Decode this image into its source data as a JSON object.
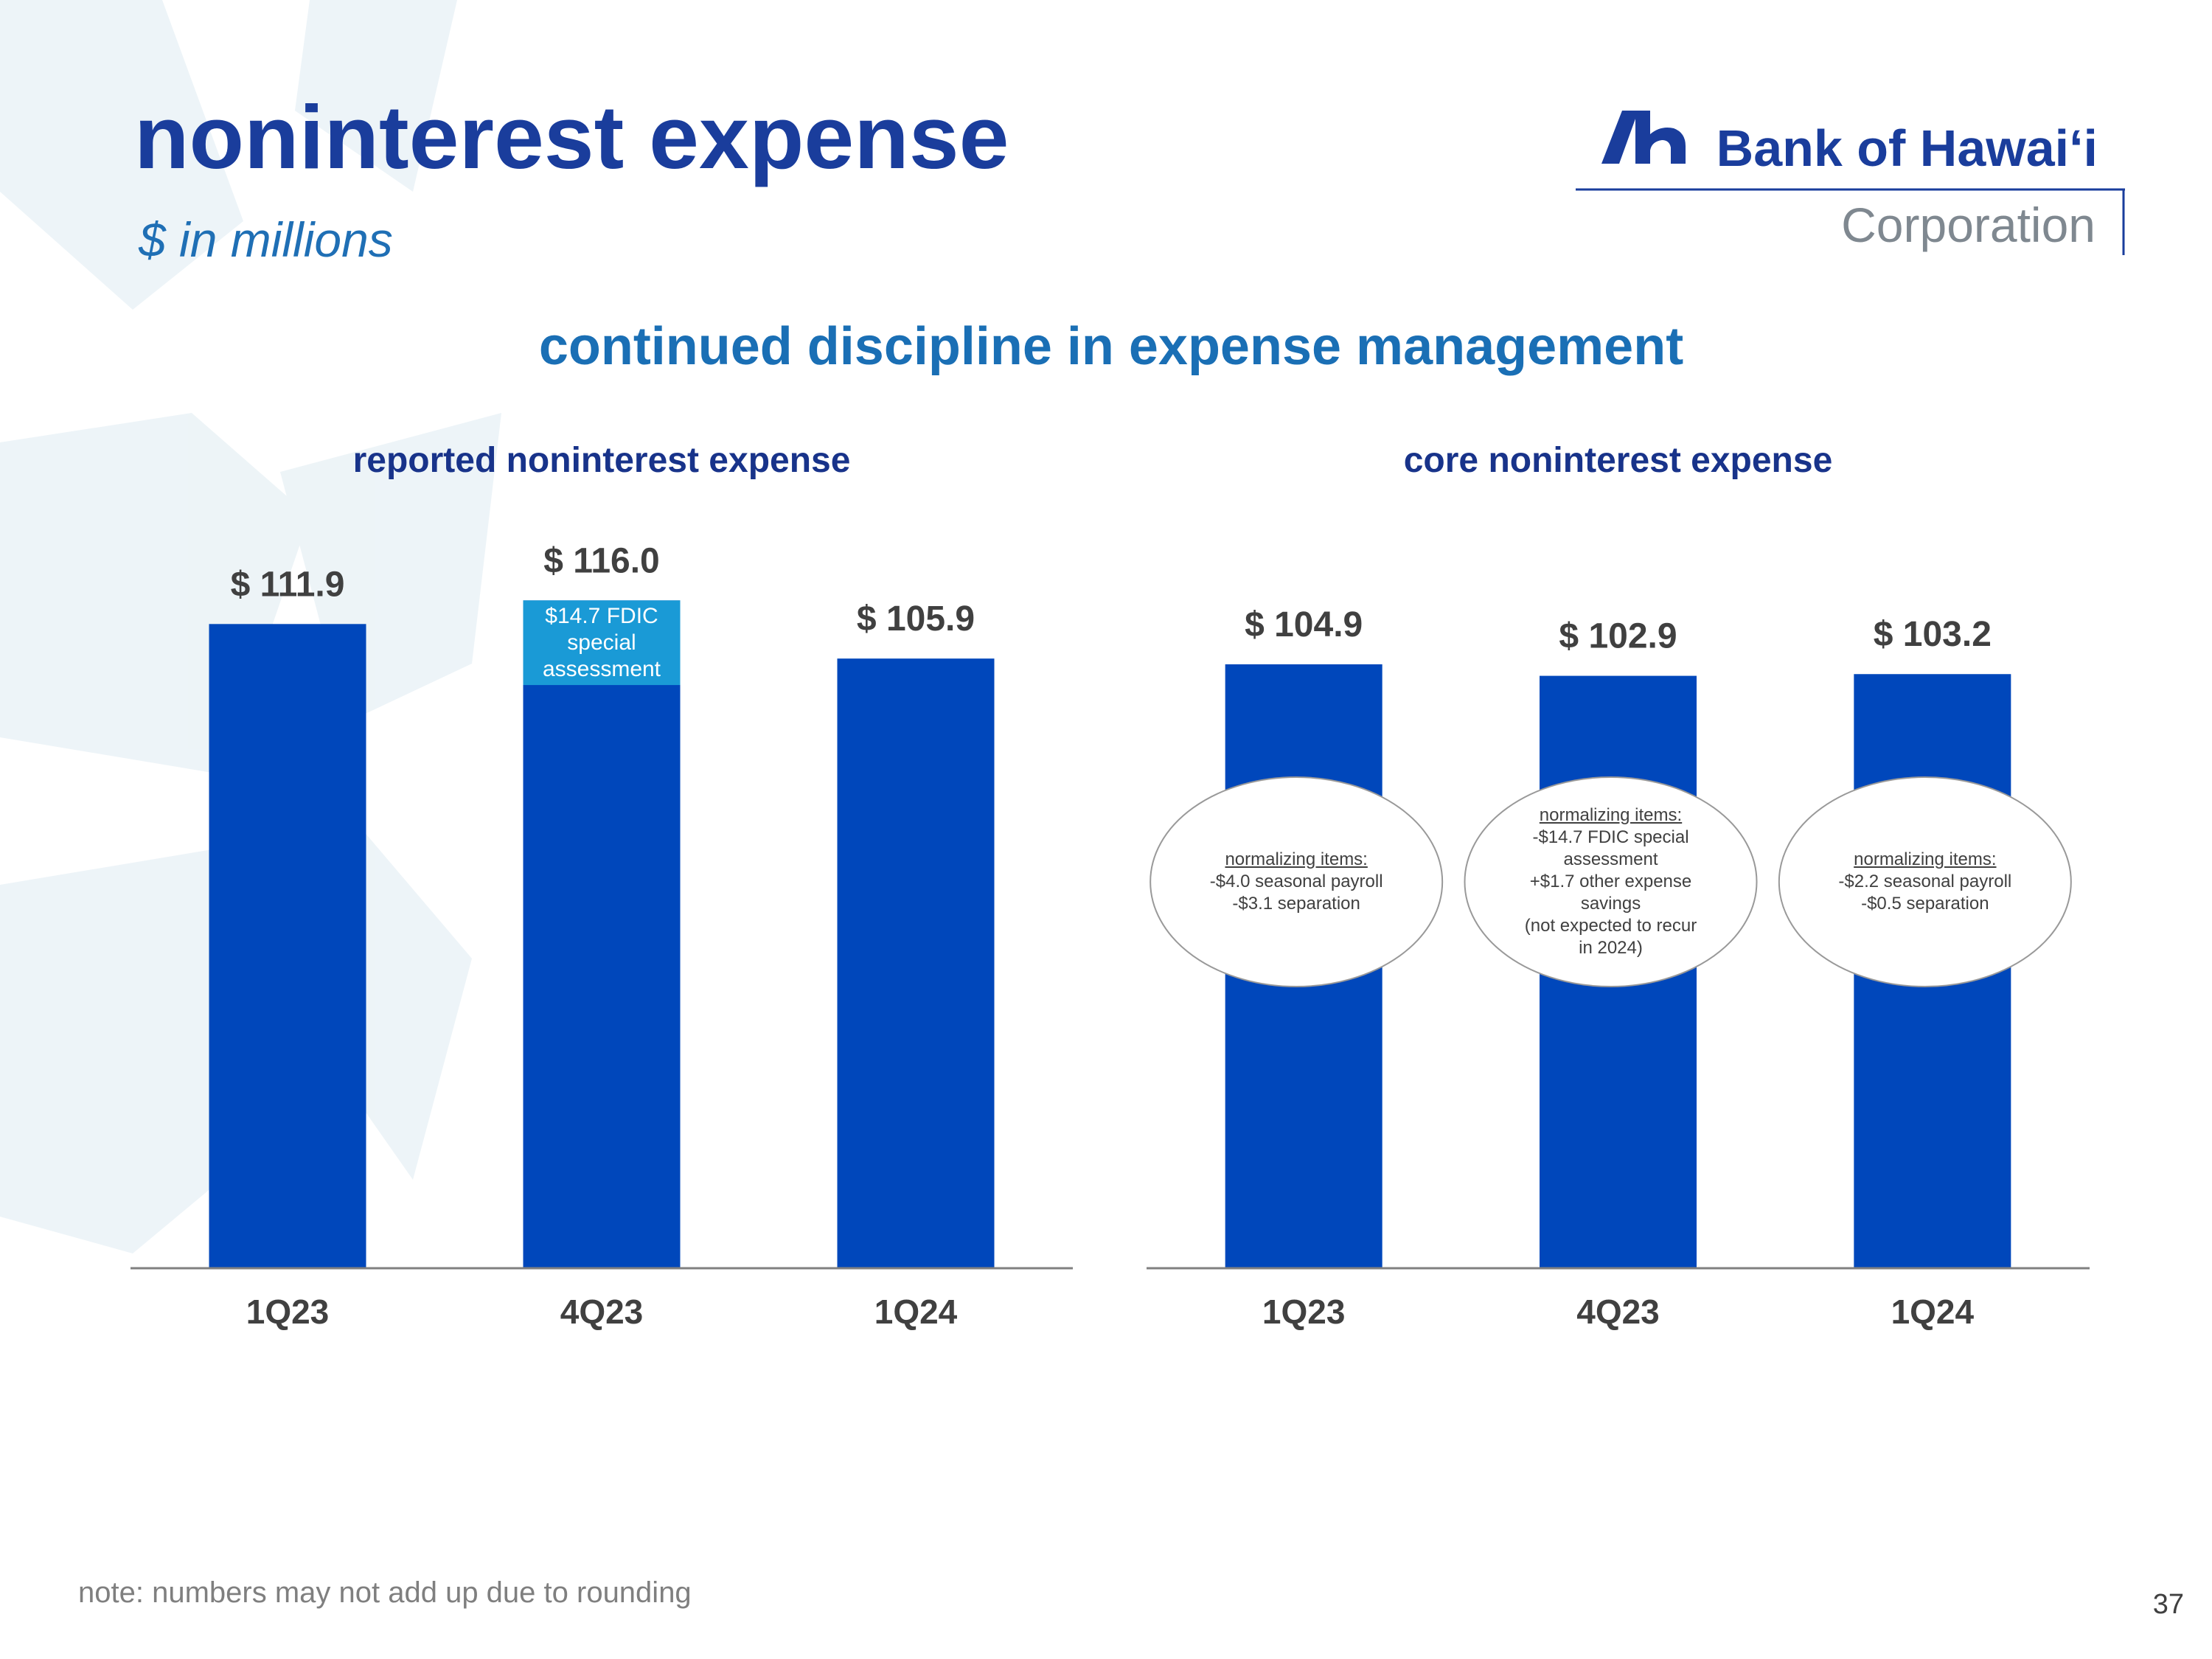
{
  "page": {
    "title": "noninterest expense",
    "subtitle": "$ in millions",
    "headline": "continued discipline in expense management",
    "logo_name": "Bank of Hawaiʻi",
    "logo_sub": "Corporation",
    "note": "note: numbers may not add up due to rounding",
    "page_number": "37"
  },
  "chart_data": [
    {
      "type": "bar",
      "title": "reported noninterest expense",
      "categories": [
        "1Q23",
        "4Q23",
        "1Q24"
      ],
      "values": [
        111.9,
        116.0,
        105.9
      ],
      "value_labels": [
        "$ 111.9",
        "$ 116.0",
        "$ 105.9"
      ],
      "color": "#0047bb",
      "ylim": [
        0,
        130
      ],
      "grid": false,
      "breakouts": [
        {
          "category": "4Q23",
          "value": 14.7,
          "label": "$14.7 FDIC special assessment",
          "color": "#1a9ad6"
        }
      ]
    },
    {
      "type": "bar",
      "title": "core noninterest expense",
      "categories": [
        "1Q23",
        "4Q23",
        "1Q24"
      ],
      "values": [
        104.9,
        102.9,
        103.2
      ],
      "value_labels": [
        "$ 104.9",
        "$ 102.9",
        "$ 103.2"
      ],
      "color": "#0047bb",
      "ylim": [
        0,
        130
      ],
      "grid": false,
      "notes": [
        {
          "heading": "normalizing items:",
          "items": [
            "-$4.0 seasonal payroll",
            "-$3.1 separation"
          ]
        },
        {
          "heading": "normalizing items:",
          "items": [
            "-$14.7 FDIC special assessment",
            "+$1.7 other expense savings",
            "(not expected to recur in 2024)"
          ]
        },
        {
          "heading": "normalizing items:",
          "items": [
            "-$2.2 seasonal payroll",
            "-$0.5 separation"
          ]
        }
      ]
    }
  ]
}
